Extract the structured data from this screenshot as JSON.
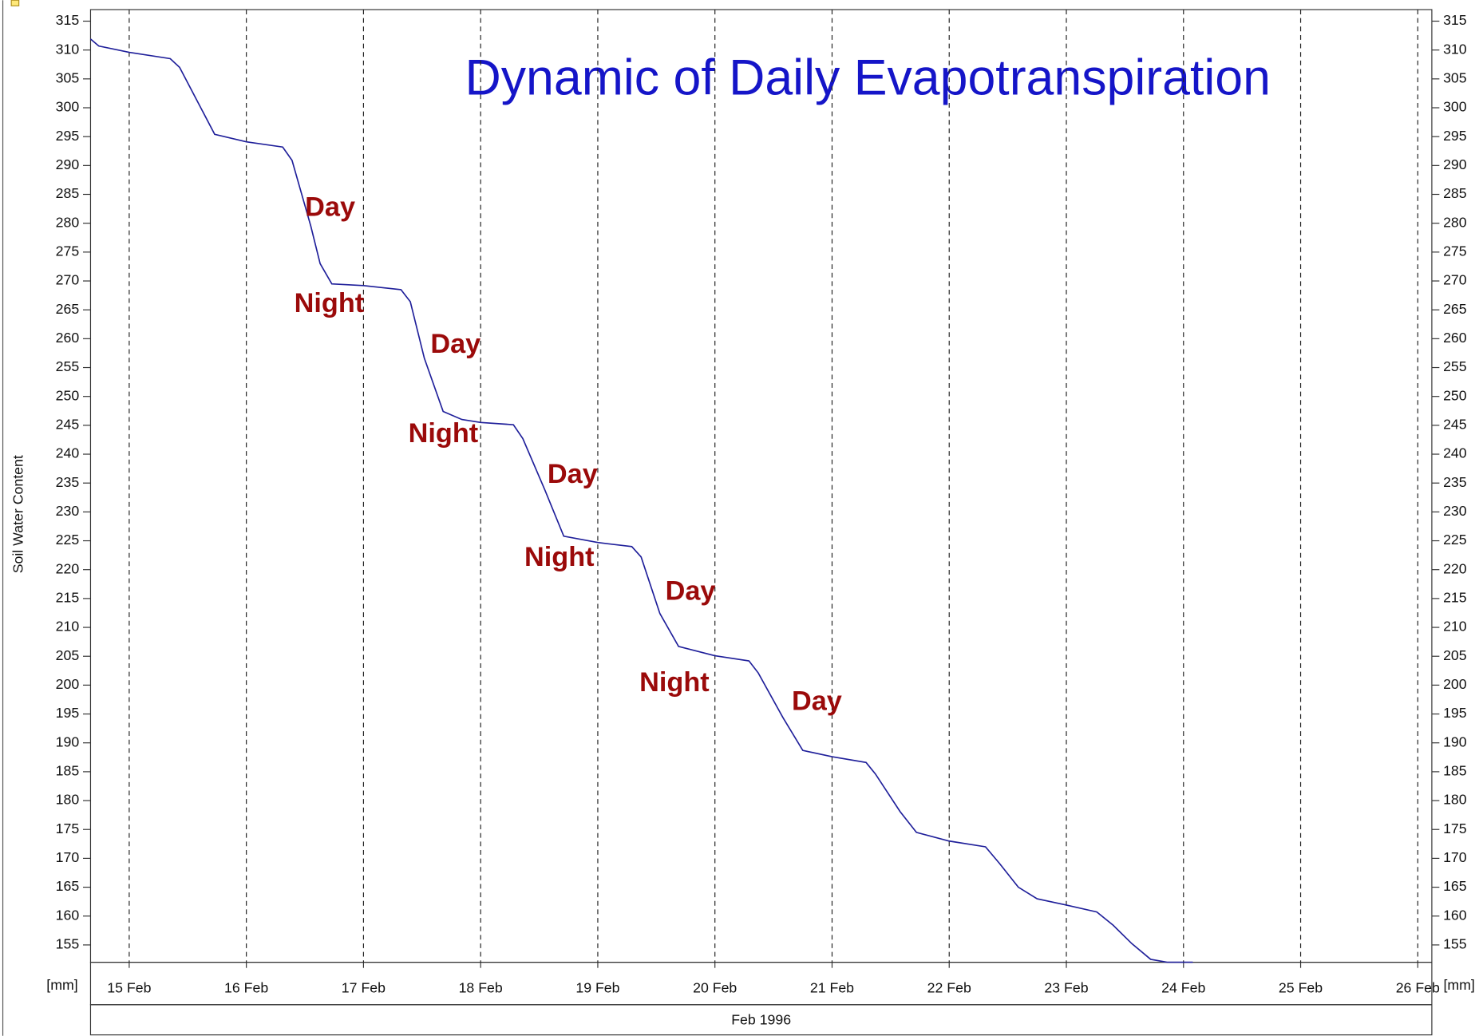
{
  "chart_data": {
    "type": "line",
    "title": "Dynamic of Daily Evapotranspiration",
    "y_label": "Soil Water Content",
    "y_unit": "[mm]",
    "x_label": "Feb 1996",
    "color": "#1f1f9a",
    "x": [
      14.67,
      14.74,
      15.0,
      15.35,
      15.43,
      15.59,
      15.73,
      16.0,
      16.31,
      16.39,
      16.55,
      16.63,
      16.73,
      17.0,
      17.32,
      17.4,
      17.52,
      17.68,
      17.84,
      18.0,
      18.28,
      18.36,
      18.55,
      18.71,
      19.0,
      19.29,
      19.37,
      19.53,
      19.69,
      20.0,
      20.29,
      20.37,
      20.58,
      20.75,
      21.0,
      21.29,
      21.37,
      21.58,
      21.72,
      22.0,
      22.31,
      22.43,
      22.59,
      22.75,
      23.0,
      23.26,
      23.4,
      23.56,
      23.72,
      23.86,
      24.08
    ],
    "values": [
      311.9,
      310.7,
      309.6,
      308.5,
      307.0,
      300.8,
      295.4,
      294.1,
      293.2,
      290.9,
      279.5,
      273.0,
      269.5,
      269.2,
      268.5,
      266.4,
      256.6,
      247.4,
      246.0,
      245.5,
      245.1,
      242.7,
      233.7,
      225.8,
      224.7,
      224.0,
      222.2,
      212.4,
      206.7,
      205.1,
      204.2,
      202.1,
      194.4,
      188.7,
      187.6,
      186.6,
      184.6,
      178.1,
      174.5,
      173.0,
      172.0,
      169.1,
      165.0,
      163.0,
      161.9,
      160.7,
      158.4,
      155.2,
      152.5,
      152.0,
      152.0
    ],
    "xlim": [
      14.67,
      26.12
    ],
    "xticks": [
      {
        "value": 15,
        "label": "15 Feb"
      },
      {
        "value": 16,
        "label": "16 Feb"
      },
      {
        "value": 17,
        "label": "17 Feb"
      },
      {
        "value": 18,
        "label": "18 Feb"
      },
      {
        "value": 19,
        "label": "19 Feb"
      },
      {
        "value": 20,
        "label": "20 Feb"
      },
      {
        "value": 21,
        "label": "21 Feb"
      },
      {
        "value": 22,
        "label": "22 Feb"
      },
      {
        "value": 23,
        "label": "23 Feb"
      },
      {
        "value": 24,
        "label": "24 Feb"
      },
      {
        "value": 25,
        "label": "25 Feb"
      },
      {
        "value": 26,
        "label": "26 Feb"
      }
    ],
    "ylim": [
      152,
      317
    ],
    "yticks": [
      155,
      160,
      165,
      170,
      175,
      180,
      185,
      190,
      195,
      200,
      205,
      210,
      215,
      220,
      225,
      230,
      235,
      240,
      245,
      250,
      255,
      260,
      265,
      270,
      275,
      280,
      285,
      290,
      295,
      300,
      305,
      310,
      315
    ],
    "grid": true,
    "annotations": [
      "Day",
      "Night",
      "Day",
      "Night",
      "Day",
      "Night",
      "Day",
      "Night",
      "Day"
    ]
  }
}
